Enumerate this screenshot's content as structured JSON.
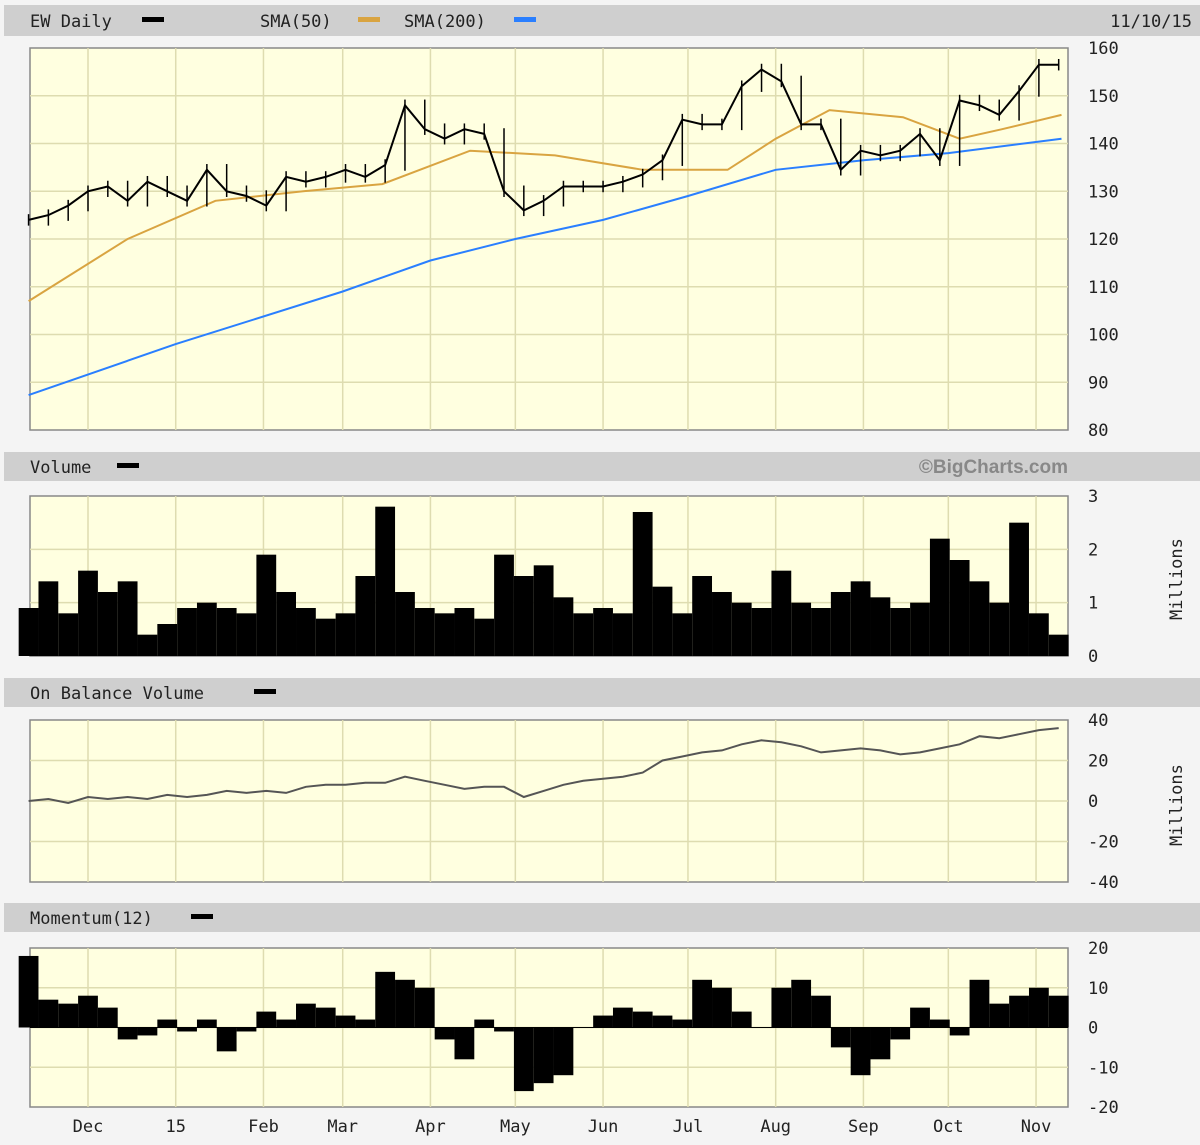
{
  "header": {
    "title": "EW Daily",
    "sma50_label": "SMA(50)",
    "sma200_label": "SMA(200)",
    "date": "11/10/15",
    "watermark": "©BigCharts.com"
  },
  "colors": {
    "price": "#000000",
    "sma50": "#d9a441",
    "sma200": "#2a7fff",
    "plot_bg": "#ffffe0",
    "header_bg": "#cfcfcf"
  },
  "chart_data": [
    {
      "type": "line",
      "panel": "price",
      "x": [
        "2014-11-10",
        "2014-11-17",
        "2014-11-24",
        "2014-12-01",
        "2014-12-08",
        "2014-12-15",
        "2014-12-22",
        "2014-12-29",
        "2015-01-05",
        "2015-01-12",
        "2015-01-19",
        "2015-01-26",
        "2015-02-02",
        "2015-02-09",
        "2015-02-16",
        "2015-02-23",
        "2015-03-02",
        "2015-03-09",
        "2015-03-16",
        "2015-03-23",
        "2015-03-30",
        "2015-04-06",
        "2015-04-13",
        "2015-04-20",
        "2015-04-27",
        "2015-05-04",
        "2015-05-11",
        "2015-05-18",
        "2015-05-25",
        "2015-06-01",
        "2015-06-08",
        "2015-06-15",
        "2015-06-22",
        "2015-06-29",
        "2015-07-06",
        "2015-07-13",
        "2015-07-20",
        "2015-07-27",
        "2015-08-03",
        "2015-08-10",
        "2015-08-17",
        "2015-08-24",
        "2015-08-31",
        "2015-09-07",
        "2015-09-14",
        "2015-09-21",
        "2015-09-28",
        "2015-10-05",
        "2015-10-12",
        "2015-10-19",
        "2015-10-26",
        "2015-11-02",
        "2015-11-09"
      ],
      "series": [
        {
          "name": "EW Daily",
          "values": [
            124,
            125,
            127,
            130,
            131,
            128,
            132,
            130,
            128,
            134.5,
            130,
            129,
            127,
            133,
            132,
            133,
            134.5,
            133,
            135.5,
            148,
            143,
            141,
            143,
            142,
            130,
            126,
            128,
            131,
            131,
            131,
            132,
            133.5,
            136.5,
            145,
            144,
            144,
            152,
            155.5,
            153,
            144,
            144,
            134.5,
            138.5,
            137.5,
            138.5,
            142,
            136.5,
            149,
            148,
            146,
            151,
            156.5,
            156.5
          ]
        }
      ],
      "overlays": [
        {
          "name": "SMA(50)",
          "x": [
            "2014-11-10",
            "2014-12-15",
            "2015-01-15",
            "2015-02-15",
            "2015-03-15",
            "2015-04-15",
            "2015-05-15",
            "2015-06-15",
            "2015-07-15",
            "2015-08-01",
            "2015-08-20",
            "2015-09-15",
            "2015-10-05",
            "2015-10-20",
            "2015-11-10"
          ],
          "values": [
            107,
            120,
            128,
            130,
            131.5,
            138.5,
            137.5,
            134.5,
            134.5,
            141,
            147,
            145.5,
            141,
            143,
            146
          ]
        },
        {
          "name": "SMA(200)",
          "x": [
            "2014-11-10",
            "2015-01-01",
            "2015-03-01",
            "2015-04-01",
            "2015-05-01",
            "2015-06-01",
            "2015-07-01",
            "2015-08-01",
            "2015-09-01",
            "2015-10-01",
            "2015-11-10"
          ],
          "values": [
            87.3,
            98,
            109,
            115.5,
            120,
            124,
            129,
            134.5,
            136.5,
            138,
            141
          ]
        }
      ],
      "ylim": [
        80,
        160
      ],
      "yticks": [
        "160",
        "150",
        "140",
        "130",
        "120",
        "110",
        "100",
        "90",
        "80"
      ],
      "grid": true
    },
    {
      "type": "bar",
      "panel": "volume",
      "title": "Volume",
      "ylabel": "Millions",
      "ylim": [
        0,
        3
      ],
      "yticks": [
        "3",
        "2",
        "1",
        "0"
      ],
      "values": [
        0.9,
        1.4,
        0.8,
        1.6,
        1.2,
        1.4,
        0.4,
        0.6,
        0.9,
        1.0,
        0.9,
        0.8,
        1.9,
        1.2,
        0.9,
        0.7,
        0.8,
        1.5,
        2.8,
        1.2,
        0.9,
        0.8,
        0.9,
        0.7,
        1.9,
        1.5,
        1.7,
        1.1,
        0.8,
        0.9,
        0.8,
        2.7,
        1.3,
        0.8,
        1.5,
        1.2,
        1.0,
        0.9,
        1.6,
        1.0,
        0.9,
        1.2,
        1.4,
        1.1,
        0.9,
        1.0,
        2.2,
        1.8,
        1.4,
        1.0,
        2.5,
        0.8,
        0.4
      ]
    },
    {
      "type": "line",
      "panel": "obv",
      "title": "On Balance Volume",
      "ylabel": "Millions",
      "ylim": [
        -40,
        40
      ],
      "yticks": [
        "40",
        "20",
        "0",
        "-20",
        "-40"
      ],
      "values": [
        0,
        1,
        -1,
        2,
        1,
        2,
        1,
        3,
        2,
        3,
        5,
        4,
        5,
        4,
        7,
        8,
        8,
        9,
        9,
        12,
        10,
        8,
        6,
        7,
        7,
        2,
        5,
        8,
        10,
        11,
        12,
        14,
        20,
        22,
        24,
        25,
        28,
        30,
        29,
        27,
        24,
        25,
        26,
        25,
        23,
        24,
        26,
        28,
        32,
        31,
        33,
        35,
        36
      ]
    },
    {
      "type": "bar",
      "panel": "momentum",
      "title": "Momentum(12)",
      "ylim": [
        -20,
        20
      ],
      "yticks": [
        "20",
        "10",
        "0",
        "-10",
        "-20"
      ],
      "values": [
        18,
        7,
        6,
        8,
        5,
        -3,
        -2,
        2,
        -1,
        2,
        -6,
        -1,
        4,
        2,
        6,
        5,
        3,
        2,
        14,
        12,
        10,
        -3,
        -8,
        2,
        -1,
        -16,
        -14,
        -12,
        0,
        3,
        5,
        4,
        3,
        2,
        12,
        10,
        4,
        0,
        10,
        12,
        8,
        -5,
        -12,
        -8,
        -3,
        5,
        2,
        -2,
        12,
        6,
        8,
        10,
        8
      ]
    }
  ],
  "xaxis": {
    "months": [
      {
        "label": "Dec",
        "date": "2014-12-01"
      },
      {
        "label": "15",
        "date": "2015-01-01"
      },
      {
        "label": "Feb",
        "date": "2015-02-01"
      },
      {
        "label": "Mar",
        "date": "2015-03-01"
      },
      {
        "label": "Apr",
        "date": "2015-04-01"
      },
      {
        "label": "May",
        "date": "2015-05-01"
      },
      {
        "label": "Jun",
        "date": "2015-06-01"
      },
      {
        "label": "Jul",
        "date": "2015-07-01"
      },
      {
        "label": "Aug",
        "date": "2015-08-01"
      },
      {
        "label": "Sep",
        "date": "2015-09-01"
      },
      {
        "label": "Oct",
        "date": "2015-10-01"
      },
      {
        "label": "Nov",
        "date": "2015-11-01"
      }
    ]
  }
}
